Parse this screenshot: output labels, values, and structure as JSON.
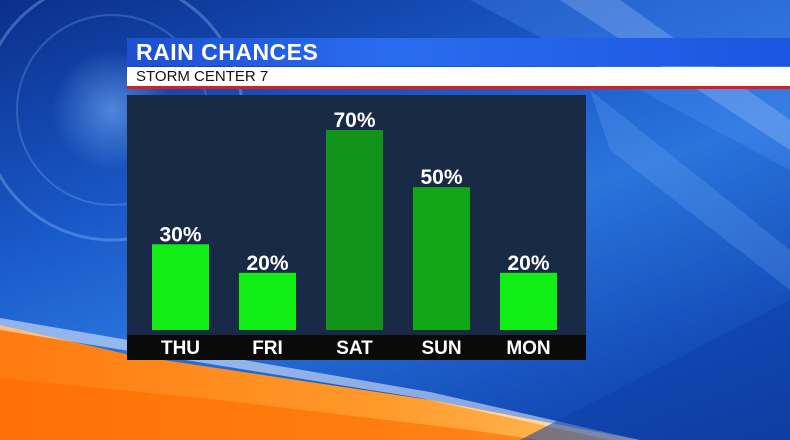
{
  "header": {
    "title": "RAIN CHANCES",
    "subtitle": "STORM CENTER 7"
  },
  "colors": {
    "panel": "#192a47",
    "axis_strip": "#0a0a0a",
    "bar_bright": "#11ee16",
    "bar_dark": "#12941a",
    "subtitle_underline": "#d91e1e",
    "title_bar": "#2a6cf0"
  },
  "chart_data": {
    "type": "bar",
    "title": "RAIN CHANCES",
    "subtitle": "STORM CENTER 7",
    "categories": [
      "THU",
      "FRI",
      "SAT",
      "SUN",
      "MON"
    ],
    "values": [
      30,
      20,
      70,
      50,
      20
    ],
    "value_labels": [
      "30%",
      "20%",
      "70%",
      "50%",
      "20%"
    ],
    "bar_colors": [
      "#11ee16",
      "#11ee16",
      "#12941a",
      "#11a818",
      "#11ee16"
    ],
    "unit": "%",
    "xlabel": "",
    "ylabel": "",
    "ylim": [
      0,
      70
    ],
    "grid": false,
    "legend": "none"
  }
}
